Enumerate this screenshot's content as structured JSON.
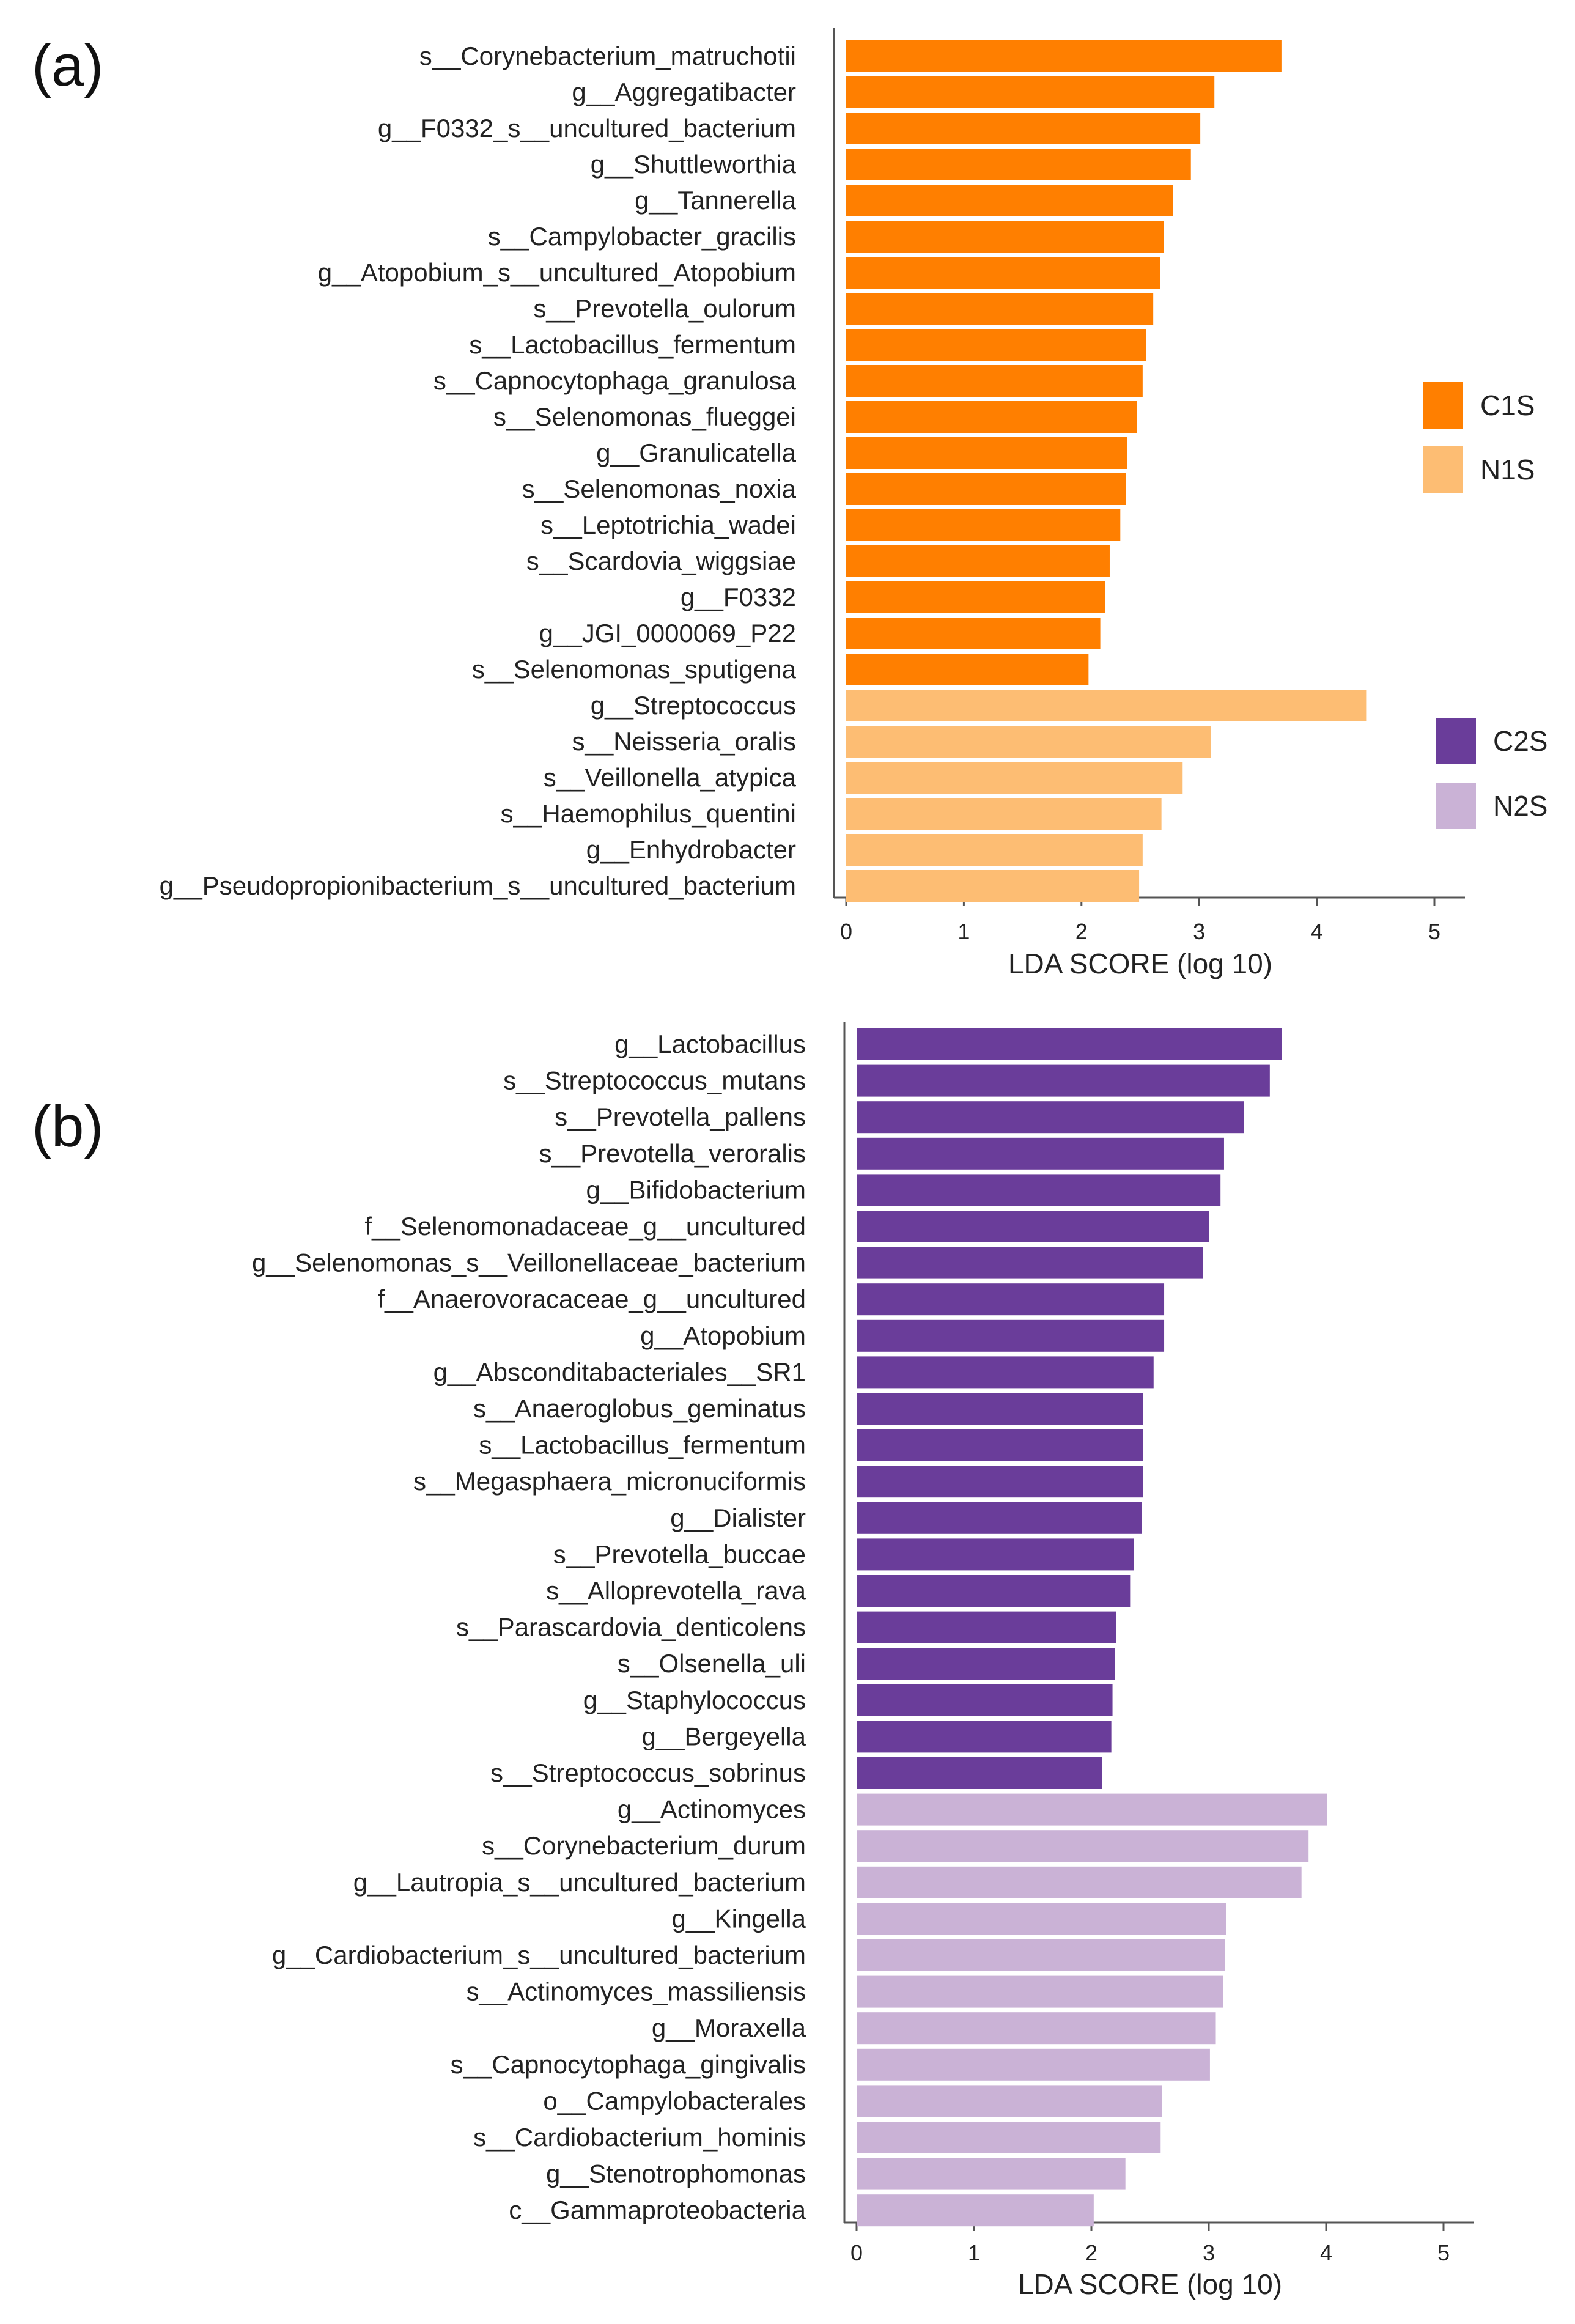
{
  "chart_data": [
    {
      "type": "bar",
      "orientation": "horizontal",
      "panel_label": "(a)",
      "xlabel": "LDA SCORE (log 10)",
      "xlim": [
        0,
        5
      ],
      "xticks": [
        0,
        1,
        2,
        3,
        4,
        5
      ],
      "legend": {
        "placement": "right",
        "entries": [
          {
            "name": "C1S",
            "color": "#ff7f00"
          },
          {
            "name": "N1S",
            "color": "#fdbd73"
          }
        ]
      },
      "series": [
        {
          "name": "C1S",
          "color": "#ff7f00",
          "categories": [
            "s__Corynebacterium_matruchotii",
            "g__Aggregatibacter",
            "g__F0332_s__uncultured_bacterium",
            "g__Shuttleworthia",
            "g__Tannerella",
            "s__Campylobacter_gracilis",
            "g__Atopobium_s__uncultured_Atopobium",
            "s__Prevotella_oulorum",
            "s__Lactobacillus_fermentum",
            "s__Capnocytophaga_granulosa",
            "s__Selenomonas_flueggei",
            "g__Granulicatella",
            "s__Selenomonas_noxia",
            "s__Leptotrichia_wadei",
            "s__Scardovia_wiggsiae",
            "g__F0332",
            "g__JGI_0000069_P22",
            "s__Selenomonas_sputigena"
          ],
          "values": [
            3.7,
            3.13,
            3.01,
            2.93,
            2.78,
            2.7,
            2.67,
            2.61,
            2.55,
            2.52,
            2.47,
            2.39,
            2.38,
            2.33,
            2.24,
            2.2,
            2.16,
            2.06
          ]
        },
        {
          "name": "N1S",
          "color": "#fdbd73",
          "categories": [
            "g__Streptococcus",
            "s__Neisseria_oralis",
            "s__Veillonella_atypica",
            "s__Haemophilus_quentini",
            "g__Enhydrobacter",
            "g__Pseudopropionibacterium_s__uncultured_bacterium"
          ],
          "values": [
            4.42,
            3.1,
            2.86,
            2.68,
            2.52,
            2.49
          ]
        }
      ]
    },
    {
      "type": "bar",
      "orientation": "horizontal",
      "panel_label": "(b)",
      "xlabel": "LDA SCORE (log 10)",
      "xlim": [
        0,
        5
      ],
      "xticks": [
        0,
        1,
        2,
        3,
        4,
        5
      ],
      "legend": {
        "placement": "right",
        "entries": [
          {
            "name": "C2S",
            "color": "#6a3d9a"
          },
          {
            "name": "N2S",
            "color": "#cab2d6"
          }
        ]
      },
      "series": [
        {
          "name": "C2S",
          "color": "#6a3d9a",
          "categories": [
            "g__Lactobacillus",
            "s__Streptococcus_mutans",
            "s__Prevotella_pallens",
            "s__Prevotella_veroralis",
            "g__Bifidobacterium",
            "f__Selenomonadaceae_g__uncultured",
            "g__Selenomonas_s__Veillonellaceae_bacterium",
            "f__Anaerovoracaceae_g__uncultured",
            "g__Atopobium",
            "g__Absconditabacteriales__SR1",
            "s__Anaeroglobus_geminatus",
            "s__Lactobacillus_fermentum",
            "s__Megasphaera_micronuciformis",
            "g__Dialister",
            "s__Prevotella_buccae",
            "s__Alloprevotella_rava",
            "s__Parascardovia_denticolens",
            "s__Olsenella_uli",
            "g__Staphylococcus",
            "g__Bergeyella",
            "s__Streptococcus_sobrinus"
          ],
          "values": [
            3.62,
            3.52,
            3.3,
            3.13,
            3.1,
            3.0,
            2.95,
            2.62,
            2.62,
            2.53,
            2.44,
            2.44,
            2.44,
            2.43,
            2.36,
            2.33,
            2.21,
            2.2,
            2.18,
            2.17,
            2.09
          ]
        },
        {
          "name": "N2S",
          "color": "#cab2d6",
          "categories": [
            "g__Actinomyces",
            "s__Corynebacterium_durum",
            "g__Lautropia_s__uncultured_bacterium",
            "g__Kingella",
            "g__Cardiobacterium_s__uncultured_bacterium",
            "s__Actinomyces_massiliensis",
            "g__Moraxella",
            "s__Capnocytophaga_gingivalis",
            "o__Campylobacterales",
            "s__Cardiobacterium_hominis",
            "g__Stenotrophomonas",
            "c__Gammaproteobacteria"
          ],
          "values": [
            4.01,
            3.85,
            3.79,
            3.15,
            3.14,
            3.12,
            3.06,
            3.01,
            2.6,
            2.59,
            2.29,
            2.02
          ]
        }
      ]
    }
  ]
}
